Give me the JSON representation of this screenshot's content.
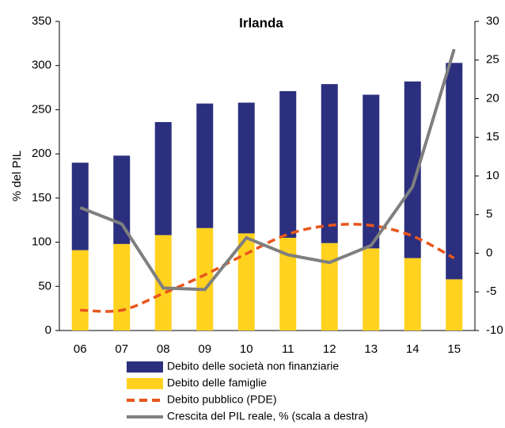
{
  "chart_data": {
    "type": "bar",
    "title": "Irlanda",
    "y_label": "% del PIL",
    "categories": [
      "06",
      "07",
      "08",
      "09",
      "10",
      "11",
      "12",
      "13",
      "14",
      "15"
    ],
    "ylim": [
      0,
      350
    ],
    "yticks": [
      0,
      50,
      100,
      150,
      200,
      250,
      300,
      350
    ],
    "y2lim": [
      -10,
      30
    ],
    "y2ticks": [
      -10,
      -5,
      0,
      5,
      10,
      15,
      20,
      25,
      30
    ],
    "series": [
      {
        "name": "Debito delle società non finanziarie",
        "color": "#2b2f7e",
        "kind": "bar",
        "stacked": true,
        "values": [
          99,
          100,
          128,
          141,
          148,
          166,
          180,
          174,
          200,
          245
        ]
      },
      {
        "name": "Debito delle famiglie",
        "color": "#ffd21f",
        "kind": "bar",
        "stacked": true,
        "values": [
          91,
          98,
          108,
          116,
          110,
          105,
          99,
          93,
          82,
          58
        ]
      },
      {
        "name": "Debito pubblico (PDE)",
        "color": "#e8561c",
        "kind": "line",
        "dashed": true,
        "values": [
          23,
          23,
          42,
          63,
          87,
          109,
          119,
          119,
          107,
          82
        ]
      },
      {
        "name": "Crescita del PIL reale, % (scala a destra)",
        "color": "#7f7f7f",
        "kind": "line",
        "axis": "y2",
        "values": [
          5.9,
          3.8,
          -4.5,
          -4.7,
          2.0,
          -0.2,
          -1.2,
          1.0,
          8.6,
          26.4
        ]
      }
    ]
  }
}
